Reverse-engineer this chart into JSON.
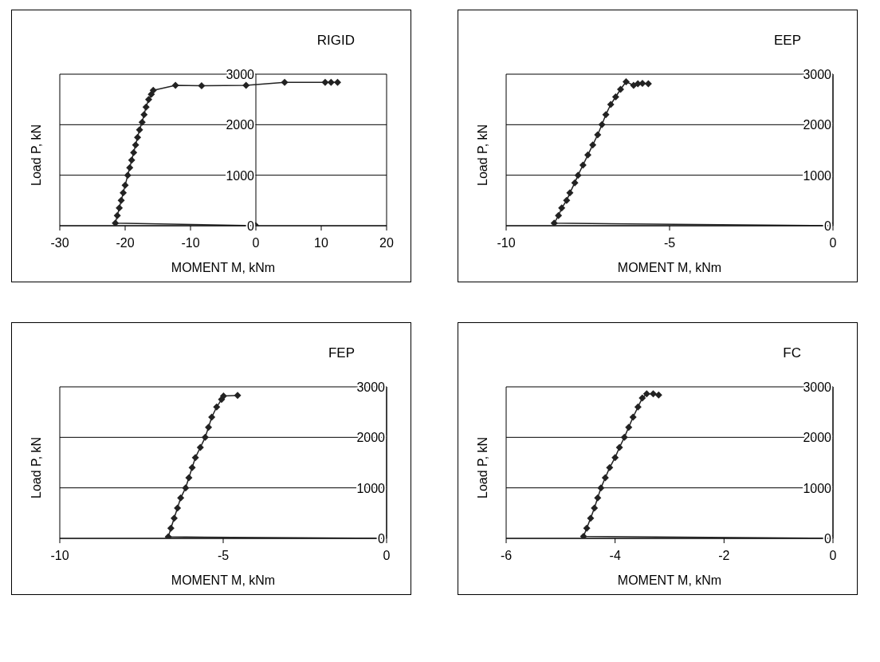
{
  "chart_data": [
    {
      "type": "line",
      "title": "RIGID",
      "xlabel": "MOMENT M, kNm",
      "ylabel": "Load P, kN",
      "marker": "diamond",
      "line_style": "solid",
      "grid": "y",
      "xlim": [
        -30,
        20
      ],
      "xticks": [
        -30,
        -20,
        -10,
        0,
        10,
        20
      ],
      "ylim": [
        0,
        3000
      ],
      "yticks": [
        0,
        1000,
        2000,
        3000
      ],
      "x": [
        0,
        -21.5,
        -21.2,
        -20.9,
        -20.6,
        -20.3,
        -20.0,
        -19.6,
        -19.3,
        -19.0,
        -18.7,
        -18.4,
        -18.1,
        -17.8,
        -17.4,
        -17.1,
        -16.8,
        -16.4,
        -16.0,
        -15.7,
        -12.3,
        -8.3,
        -1.5,
        4.4,
        10.6,
        11.5,
        12.5
      ],
      "values": [
        0,
        50,
        200,
        350,
        500,
        650,
        800,
        1000,
        1150,
        1300,
        1450,
        1600,
        1750,
        1900,
        2050,
        2200,
        2350,
        2500,
        2600,
        2680,
        2780,
        2770,
        2780,
        2840,
        2840,
        2840,
        2840
      ],
      "color": "#222222"
    },
    {
      "type": "line",
      "title": "EEP",
      "xlabel": "MOMENT M, kNm",
      "ylabel": "Load P, kN",
      "marker": "diamond",
      "line_style": "solid",
      "grid": "y",
      "xlim": [
        -10,
        0
      ],
      "xticks": [
        -10,
        -5,
        0
      ],
      "ylim": [
        0,
        3000
      ],
      "yticks": [
        0,
        1000,
        2000,
        3000
      ],
      "x": [
        0,
        -8.53,
        -8.4,
        -8.3,
        -8.15,
        -8.05,
        -7.9,
        -7.8,
        -7.65,
        -7.5,
        -7.35,
        -7.2,
        -7.07,
        -6.95,
        -6.8,
        -6.65,
        -6.5,
        -6.33,
        -6.1,
        -5.97,
        -5.83,
        -5.65
      ],
      "values": [
        0,
        50,
        200,
        350,
        500,
        650,
        850,
        1000,
        1200,
        1400,
        1600,
        1800,
        2000,
        2200,
        2400,
        2550,
        2700,
        2850,
        2780,
        2810,
        2820,
        2810
      ],
      "color": "#222222"
    },
    {
      "type": "line",
      "title": "FEP",
      "xlabel": "MOMENT M, kNm",
      "ylabel": "Load P, kN",
      "marker": "diamond",
      "line_style": "solid",
      "grid": "y",
      "xlim": [
        -10,
        0
      ],
      "xticks": [
        -10,
        -5,
        0
      ],
      "ylim": [
        0,
        3000
      ],
      "yticks": [
        0,
        1000,
        2000,
        3000
      ],
      "x": [
        0,
        -6.68,
        -6.6,
        -6.5,
        -6.4,
        -6.3,
        -6.15,
        -6.05,
        -5.95,
        -5.85,
        -5.7,
        -5.55,
        -5.45,
        -5.35,
        -5.2,
        -5.05,
        -4.99,
        -4.56
      ],
      "values": [
        0,
        30,
        200,
        400,
        600,
        800,
        1000,
        1200,
        1400,
        1600,
        1800,
        2000,
        2200,
        2400,
        2600,
        2750,
        2820,
        2830
      ],
      "color": "#222222"
    },
    {
      "type": "line",
      "title": "FC",
      "xlabel": "MOMENT M, kNm",
      "ylabel": "Load P, kN",
      "marker": "diamond",
      "line_style": "solid",
      "grid": "y",
      "xlim": [
        -6,
        0
      ],
      "xticks": [
        -6,
        -4,
        -2,
        0
      ],
      "ylim": [
        0,
        3000
      ],
      "yticks": [
        0,
        1000,
        2000,
        3000
      ],
      "x": [
        0,
        -4.58,
        -4.52,
        -4.45,
        -4.38,
        -4.32,
        -4.26,
        -4.18,
        -4.1,
        -4.0,
        -3.92,
        -3.83,
        -3.75,
        -3.67,
        -3.58,
        -3.5,
        -3.42,
        -3.3,
        -3.2
      ],
      "values": [
        0,
        40,
        200,
        400,
        600,
        800,
        1000,
        1200,
        1400,
        1600,
        1800,
        2000,
        2200,
        2400,
        2600,
        2780,
        2860,
        2860,
        2840
      ],
      "color": "#222222"
    }
  ]
}
